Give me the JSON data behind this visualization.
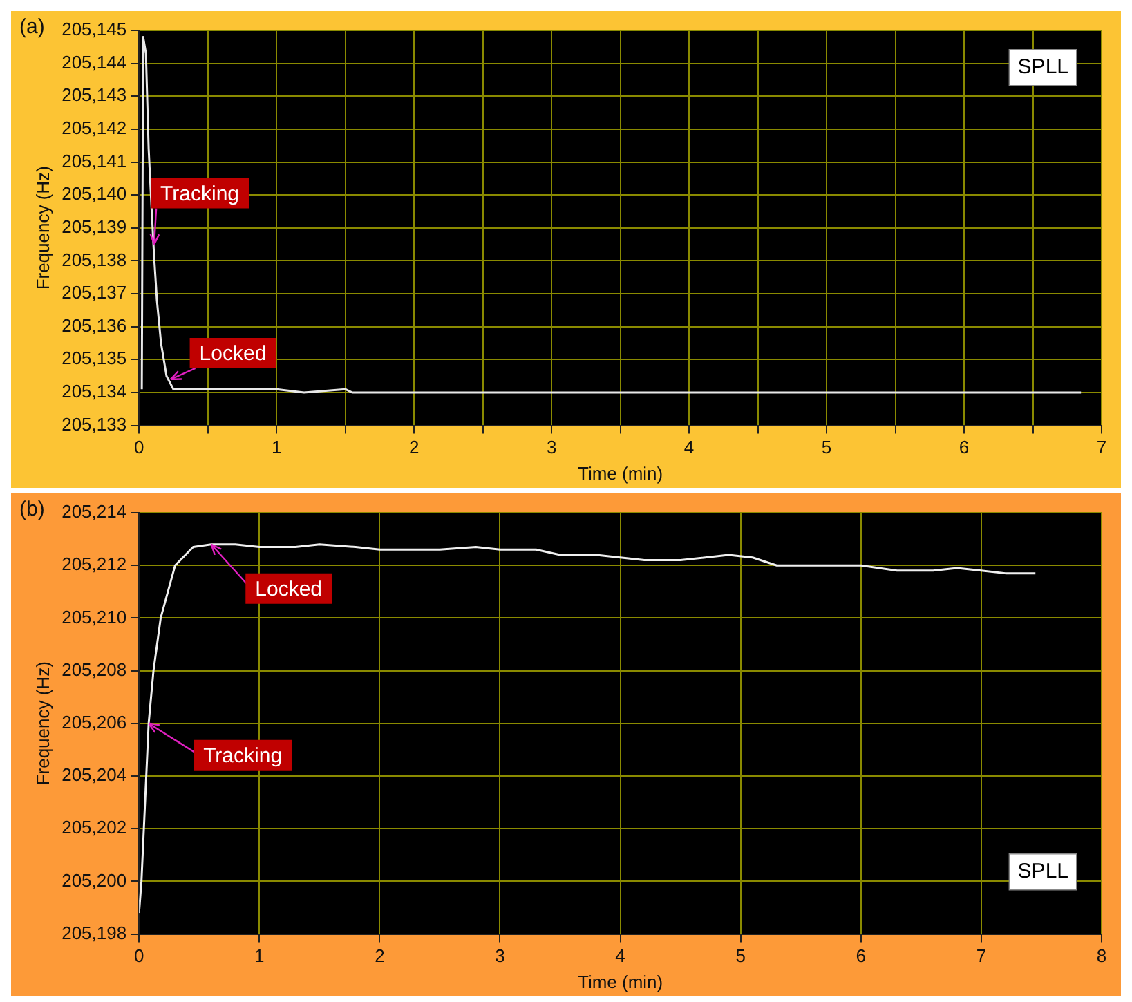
{
  "chart_data": [
    {
      "type": "line",
      "xlabel": "Time (min)",
      "ylabel": "Frequency (Hz)",
      "grid": true,
      "marker": "none",
      "line_style": "solid",
      "xlim": [
        0,
        7
      ],
      "xticks": [
        0,
        {
          "value": 0.5,
          "label": null
        },
        1,
        {
          "value": 1.5,
          "label": null
        },
        2,
        {
          "value": 2.5,
          "label": null
        },
        3,
        {
          "value": 3.5,
          "label": null
        },
        4,
        {
          "value": 4.5,
          "label": null
        },
        5,
        {
          "value": 5.5,
          "label": null
        },
        6,
        {
          "value": 6.5,
          "label": null
        },
        7
      ],
      "ylim": [
        205133,
        205145
      ],
      "yticks": [
        {
          "value": 205133,
          "label": "205,133"
        },
        {
          "value": 205134,
          "label": "205,134"
        },
        {
          "value": 205135,
          "label": "205,135"
        },
        {
          "value": 205136,
          "label": "205,136"
        },
        {
          "value": 205137,
          "label": "205,137"
        },
        {
          "value": 205138,
          "label": "205,138"
        },
        {
          "value": 205139,
          "label": "205,139"
        },
        {
          "value": 205140,
          "label": "205,140"
        },
        {
          "value": 205141,
          "label": "205,141"
        },
        {
          "value": 205142,
          "label": "205,142"
        },
        {
          "value": 205143,
          "label": "205,143"
        },
        {
          "value": 205144,
          "label": "205,144"
        },
        {
          "value": 205145,
          "label": "205,145"
        }
      ],
      "x": [
        0.02,
        0.03,
        0.05,
        0.07,
        0.09,
        0.11,
        0.13,
        0.16,
        0.2,
        0.25,
        0.5,
        1,
        1.2,
        1.5,
        1.55,
        3,
        5,
        6.85
      ],
      "series": [
        {
          "color": "#e8e8e8",
          "values": [
            205134.1,
            205144.8,
            205144.3,
            205141.4,
            205139.7,
            205138.1,
            205136.8,
            205135.5,
            205134.5,
            205134.1,
            205134.1,
            205134.1,
            205134.0,
            205134.1,
            205134.0,
            205134.0,
            205134.0,
            205134.0
          ]
        }
      ],
      "annotations": [
        "(a)",
        "SPLL",
        {
          "text": "Tracking",
          "x": 0.11,
          "y": 205138.5
        },
        {
          "text": "Locked",
          "x": 0.23,
          "y": 205134.4
        }
      ]
    },
    {
      "type": "line",
      "xlabel": "Time (min)",
      "ylabel": "Frequency (Hz)",
      "grid": true,
      "marker": "none",
      "line_style": "solid",
      "xlim": [
        0,
        8
      ],
      "xticks": [
        0,
        1,
        2,
        3,
        4,
        5,
        6,
        7,
        8
      ],
      "ylim": [
        205198,
        205214
      ],
      "yticks": [
        {
          "value": 205198,
          "label": "205,198"
        },
        {
          "value": 205200,
          "label": "205,200"
        },
        {
          "value": 205202,
          "label": "205,202"
        },
        {
          "value": 205204,
          "label": "205,204"
        },
        {
          "value": 205206,
          "label": "205,206"
        },
        {
          "value": 205208,
          "label": "205,208"
        },
        {
          "value": 205210,
          "label": "205,210"
        },
        {
          "value": 205212,
          "label": "205,212"
        },
        {
          "value": 205214,
          "label": "205,214"
        }
      ],
      "x": [
        0,
        0.02,
        0.04,
        0.06,
        0.08,
        0.12,
        0.18,
        0.3,
        0.45,
        0.6,
        0.8,
        1,
        1.3,
        1.5,
        1.8,
        2,
        2.3,
        2.5,
        2.8,
        3,
        3.3,
        3.5,
        3.8,
        4,
        4.2,
        4.5,
        4.9,
        5.1,
        5.3,
        5.7,
        6,
        6.3,
        6.6,
        6.8,
        7,
        7.2,
        7.45
      ],
      "series": [
        {
          "color": "#f0f0f0",
          "values": [
            205198.8,
            205200,
            205202,
            205204,
            205206,
            205208,
            205210,
            205212,
            205212.7,
            205212.8,
            205212.8,
            205212.7,
            205212.7,
            205212.8,
            205212.7,
            205212.6,
            205212.6,
            205212.6,
            205212.7,
            205212.6,
            205212.6,
            205212.4,
            205212.4,
            205212.3,
            205212.2,
            205212.2,
            205212.4,
            205212.3,
            205212.0,
            205212.0,
            205212.0,
            205211.8,
            205211.8,
            205211.9,
            205211.8,
            205211.7,
            205211.7
          ]
        }
      ],
      "annotations": [
        "(b)",
        "SPLL",
        {
          "text": "Locked",
          "x": 0.6,
          "y": 205212.8
        },
        {
          "text": "Tracking",
          "x": 0.08,
          "y": 205206
        }
      ]
    }
  ]
}
